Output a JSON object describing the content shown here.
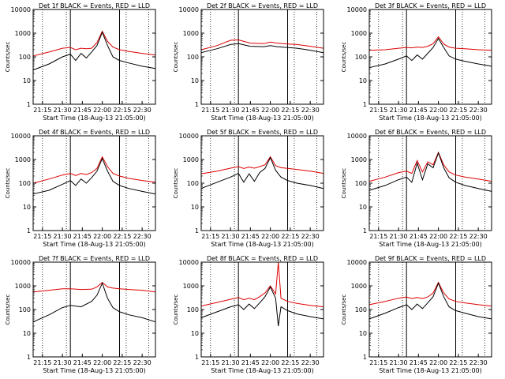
{
  "colors": {
    "background": "#ffffff",
    "axes": "#000000",
    "events": "#000000",
    "lld": "#dd0000"
  },
  "chart_data": [
    {
      "type": "line",
      "title": "Det 1f BLACK = Events, RED = LLD",
      "xlabel": "Start Time (18-Aug-13 21:05:00)",
      "ylabel": "Counts/sec",
      "x_range": [
        "21:08",
        "22:40"
      ],
      "y_scale": "log",
      "ylim": [
        1,
        10000
      ],
      "x_ticks": [
        "21:15",
        "21:30",
        "21:45",
        "22:00",
        "22:15",
        "22:30"
      ],
      "y_ticks": [
        "1",
        "10",
        "100",
        "1000",
        "10000"
      ],
      "vlines_dotted": [
        "21:15",
        "21:33",
        "22:18",
        "22:35"
      ],
      "vlines_solid": [
        "21:36",
        "22:13"
      ],
      "x": [
        "21:08",
        "21:20",
        "21:30",
        "21:36",
        "21:40",
        "21:44",
        "21:48",
        "21:52",
        "21:56",
        "22:00",
        "22:04",
        "22:08",
        "22:13",
        "22:20",
        "22:30",
        "22:40"
      ],
      "series": [
        {
          "name": "LLD",
          "color": "#dd0000",
          "values": [
            110,
            160,
            230,
            250,
            200,
            230,
            220,
            230,
            400,
            1200,
            450,
            260,
            200,
            170,
            140,
            120
          ]
        },
        {
          "name": "Events",
          "color": "#000000",
          "values": [
            28,
            50,
            100,
            130,
            70,
            140,
            90,
            160,
            300,
            1100,
            300,
            100,
            70,
            55,
            40,
            32
          ]
        }
      ]
    },
    {
      "type": "line",
      "title": "Det 2f BLACK = Events, RED = LLD",
      "xlabel": "Start Time (18-Aug-13 21:05:00)",
      "ylabel": "Counts/sec",
      "x_range": [
        "21:08",
        "22:40"
      ],
      "y_scale": "log",
      "ylim": [
        1,
        10000
      ],
      "x_ticks": [
        "21:15",
        "21:30",
        "21:45",
        "22:00",
        "22:15",
        "22:30"
      ],
      "y_ticks": [
        "1",
        "10",
        "100",
        "1000",
        "10000"
      ],
      "vlines_dotted": [
        "21:15",
        "21:33",
        "22:18",
        "22:35"
      ],
      "vlines_solid": [
        "21:36",
        "22:13"
      ],
      "x": [
        "21:08",
        "21:20",
        "21:30",
        "21:36",
        "21:45",
        "21:55",
        "22:00",
        "22:05",
        "22:13",
        "22:20",
        "22:30",
        "22:40"
      ],
      "series": [
        {
          "name": "LLD",
          "color": "#dd0000",
          "values": [
            200,
            300,
            500,
            520,
            380,
            360,
            420,
            380,
            350,
            330,
            280,
            230
          ]
        },
        {
          "name": "Events",
          "color": "#000000",
          "values": [
            150,
            220,
            330,
            360,
            280,
            270,
            300,
            270,
            250,
            230,
            190,
            150
          ]
        }
      ]
    },
    {
      "type": "line",
      "title": "Det 3f BLACK = Events, RED = LLD",
      "xlabel": "Start Time (18-Aug-13 21:05:00)",
      "ylabel": "Counts/sec",
      "x_range": [
        "21:08",
        "22:40"
      ],
      "y_scale": "log",
      "ylim": [
        1,
        10000
      ],
      "x_ticks": [
        "21:15",
        "21:30",
        "21:45",
        "22:00",
        "22:15",
        "22:30"
      ],
      "y_ticks": [
        "1",
        "10",
        "100",
        "1000",
        "10000"
      ],
      "vlines_dotted": [
        "21:15",
        "21:33",
        "22:18",
        "22:35"
      ],
      "vlines_solid": [
        "21:36",
        "22:13"
      ],
      "x": [
        "21:08",
        "21:20",
        "21:30",
        "21:36",
        "21:40",
        "21:44",
        "21:48",
        "21:52",
        "21:56",
        "22:00",
        "22:04",
        "22:08",
        "22:13",
        "22:20",
        "22:30",
        "22:40"
      ],
      "series": [
        {
          "name": "LLD",
          "color": "#dd0000",
          "values": [
            190,
            200,
            230,
            250,
            240,
            260,
            250,
            280,
            360,
            700,
            350,
            260,
            230,
            220,
            200,
            190
          ]
        },
        {
          "name": "Events",
          "color": "#000000",
          "values": [
            35,
            50,
            80,
            110,
            70,
            120,
            80,
            140,
            250,
            600,
            250,
            110,
            80,
            65,
            50,
            40
          ]
        }
      ]
    },
    {
      "type": "line",
      "title": "Det 4f BLACK = Events, RED = LLD",
      "xlabel": "Start Time (18-Aug-13 21:05:00)",
      "ylabel": "Counts/sec",
      "x_range": [
        "21:08",
        "22:40"
      ],
      "y_scale": "log",
      "ylim": [
        1,
        10000
      ],
      "x_ticks": [
        "21:15",
        "21:30",
        "21:45",
        "22:00",
        "22:15",
        "22:30"
      ],
      "y_ticks": [
        "1",
        "10",
        "100",
        "1000",
        "10000"
      ],
      "vlines_dotted": [
        "21:15",
        "21:33",
        "22:18",
        "22:35"
      ],
      "vlines_solid": [
        "21:36",
        "22:13"
      ],
      "x": [
        "21:08",
        "21:20",
        "21:30",
        "21:36",
        "21:40",
        "21:44",
        "21:48",
        "21:52",
        "21:56",
        "22:00",
        "22:04",
        "22:08",
        "22:13",
        "22:20",
        "22:30",
        "22:40"
      ],
      "series": [
        {
          "name": "LLD",
          "color": "#dd0000",
          "values": [
            100,
            150,
            220,
            260,
            210,
            260,
            230,
            280,
            420,
            1300,
            500,
            260,
            200,
            160,
            130,
            110
          ]
        },
        {
          "name": "Events",
          "color": "#000000",
          "values": [
            35,
            50,
            90,
            130,
            80,
            150,
            100,
            170,
            320,
            1100,
            320,
            120,
            80,
            60,
            45,
            35
          ]
        }
      ]
    },
    {
      "type": "line",
      "title": "Det 5f BLACK = Events, RED = LLD",
      "xlabel": "Start Time (18-Aug-13 21:05:00)",
      "ylabel": "Counts/sec",
      "x_range": [
        "21:08",
        "22:40"
      ],
      "y_scale": "log",
      "ylim": [
        1,
        10000
      ],
      "x_ticks": [
        "21:15",
        "21:30",
        "21:45",
        "22:00",
        "22:15",
        "22:30"
      ],
      "y_ticks": [
        "1",
        "10",
        "100",
        "1000",
        "10000"
      ],
      "vlines_dotted": [
        "21:15",
        "21:33",
        "22:18",
        "22:35"
      ],
      "vlines_solid": [
        "21:36",
        "22:13"
      ],
      "x": [
        "21:08",
        "21:20",
        "21:30",
        "21:36",
        "21:40",
        "21:44",
        "21:48",
        "21:52",
        "21:56",
        "22:00",
        "22:04",
        "22:08",
        "22:13",
        "22:20",
        "22:30",
        "22:40"
      ],
      "series": [
        {
          "name": "LLD",
          "color": "#dd0000",
          "values": [
            250,
            320,
            430,
            500,
            420,
            480,
            430,
            500,
            600,
            1300,
            550,
            450,
            420,
            380,
            320,
            260
          ]
        },
        {
          "name": "Events",
          "color": "#000000",
          "values": [
            60,
            110,
            180,
            260,
            110,
            250,
            120,
            280,
            420,
            1200,
            350,
            180,
            130,
            100,
            80,
            60
          ]
        }
      ]
    },
    {
      "type": "line",
      "title": "Det 6f BLACK = Events, RED = LLD",
      "xlabel": "Start Time (18-Aug-13 21:05:00)",
      "ylabel": "Counts/sec",
      "x_range": [
        "21:08",
        "22:40"
      ],
      "y_scale": "log",
      "ylim": [
        1,
        10000
      ],
      "x_ticks": [
        "21:15",
        "21:30",
        "21:45",
        "22:00",
        "22:15",
        "22:30"
      ],
      "y_ticks": [
        "1",
        "10",
        "100",
        "1000",
        "10000"
      ],
      "vlines_dotted": [
        "21:15",
        "21:33",
        "22:18",
        "22:35"
      ],
      "vlines_solid": [
        "21:36",
        "22:13"
      ],
      "x": [
        "21:08",
        "21:20",
        "21:30",
        "21:36",
        "21:40",
        "21:44",
        "21:48",
        "21:52",
        "21:56",
        "22:00",
        "22:04",
        "22:08",
        "22:13",
        "22:20",
        "22:30",
        "22:40"
      ],
      "series": [
        {
          "name": "LLD",
          "color": "#dd0000",
          "values": [
            120,
            180,
            280,
            320,
            260,
            900,
            300,
            800,
            600,
            2000,
            600,
            300,
            220,
            180,
            150,
            120
          ]
        },
        {
          "name": "Events",
          "color": "#000000",
          "values": [
            50,
            80,
            140,
            180,
            110,
            700,
            140,
            650,
            450,
            1900,
            450,
            170,
            110,
            80,
            60,
            45
          ]
        }
      ]
    },
    {
      "type": "line",
      "title": "Det 7f BLACK = Events, RED = LLD",
      "xlabel": "Start Time (18-Aug-13 21:05:00)",
      "ylabel": "Counts/sec",
      "x_range": [
        "21:08",
        "22:40"
      ],
      "y_scale": "log",
      "ylim": [
        1,
        10000
      ],
      "x_ticks": [
        "21:15",
        "21:30",
        "21:45",
        "22:00",
        "22:15",
        "22:30"
      ],
      "y_ticks": [
        "1",
        "10",
        "100",
        "1000",
        "10000"
      ],
      "vlines_dotted": [
        "21:15",
        "21:33",
        "22:18",
        "22:35"
      ],
      "vlines_solid": [
        "21:36",
        "22:13"
      ],
      "x": [
        "21:08",
        "21:20",
        "21:30",
        "21:36",
        "21:44",
        "21:52",
        "21:56",
        "22:00",
        "22:04",
        "22:08",
        "22:13",
        "22:20",
        "22:30",
        "22:40"
      ],
      "series": [
        {
          "name": "LLD",
          "color": "#dd0000",
          "values": [
            550,
            650,
            750,
            750,
            700,
            720,
            900,
            1400,
            900,
            800,
            750,
            700,
            650,
            550
          ]
        },
        {
          "name": "Events",
          "color": "#000000",
          "values": [
            30,
            60,
            120,
            150,
            130,
            220,
            400,
            1300,
            300,
            120,
            80,
            60,
            45,
            30
          ]
        }
      ]
    },
    {
      "type": "line",
      "title": "Det 8f BLACK = Events, RED = LLD",
      "xlabel": "Start Time (18-Aug-13 21:05:00)",
      "ylabel": "Counts/sec",
      "x_range": [
        "21:08",
        "22:40"
      ],
      "y_scale": "log",
      "ylim": [
        1,
        10000
      ],
      "x_ticks": [
        "21:15",
        "21:30",
        "21:45",
        "22:00",
        "22:15",
        "22:30"
      ],
      "y_ticks": [
        "1",
        "10",
        "100",
        "1000",
        "10000"
      ],
      "vlines_dotted": [
        "21:15",
        "21:33",
        "22:18",
        "22:35"
      ],
      "vlines_solid": [
        "21:36",
        "22:13"
      ],
      "x": [
        "21:08",
        "21:20",
        "21:30",
        "21:36",
        "21:40",
        "21:44",
        "21:48",
        "21:52",
        "21:56",
        "22:00",
        "22:04",
        "22:06",
        "22:08",
        "22:13",
        "22:20",
        "22:30",
        "22:40"
      ],
      "series": [
        {
          "name": "LLD",
          "color": "#dd0000",
          "values": [
            140,
            200,
            270,
            320,
            260,
            300,
            260,
            350,
            500,
            1000,
            450,
            10000,
            300,
            220,
            180,
            150,
            130
          ]
        },
        {
          "name": "Events",
          "color": "#000000",
          "values": [
            45,
            80,
            130,
            160,
            100,
            170,
            110,
            190,
            350,
            900,
            300,
            20,
            130,
            90,
            65,
            50,
            40
          ]
        }
      ]
    },
    {
      "type": "line",
      "title": "Det 9f BLACK = Events, RED = LLD",
      "xlabel": "Start Time (18-Aug-13 21:05:00)",
      "ylabel": "Counts/sec",
      "x_range": [
        "21:08",
        "22:40"
      ],
      "y_scale": "log",
      "ylim": [
        1,
        10000
      ],
      "x_ticks": [
        "21:15",
        "21:30",
        "21:45",
        "22:00",
        "22:15",
        "22:30"
      ],
      "y_ticks": [
        "1",
        "10",
        "100",
        "1000",
        "10000"
      ],
      "vlines_dotted": [
        "21:15",
        "21:33",
        "22:18",
        "22:35"
      ],
      "vlines_solid": [
        "21:36",
        "22:13"
      ],
      "x": [
        "21:08",
        "21:20",
        "21:30",
        "21:36",
        "21:40",
        "21:44",
        "21:48",
        "21:52",
        "21:56",
        "22:00",
        "22:04",
        "22:08",
        "22:13",
        "22:20",
        "22:30",
        "22:40"
      ],
      "series": [
        {
          "name": "LLD",
          "color": "#dd0000",
          "values": [
            160,
            220,
            300,
            340,
            290,
            320,
            290,
            340,
            500,
            1400,
            500,
            280,
            220,
            190,
            160,
            140
          ]
        },
        {
          "name": "Events",
          "color": "#000000",
          "values": [
            40,
            70,
            120,
            160,
            100,
            170,
            110,
            190,
            350,
            1300,
            350,
            130,
            90,
            70,
            50,
            40
          ]
        }
      ]
    }
  ]
}
